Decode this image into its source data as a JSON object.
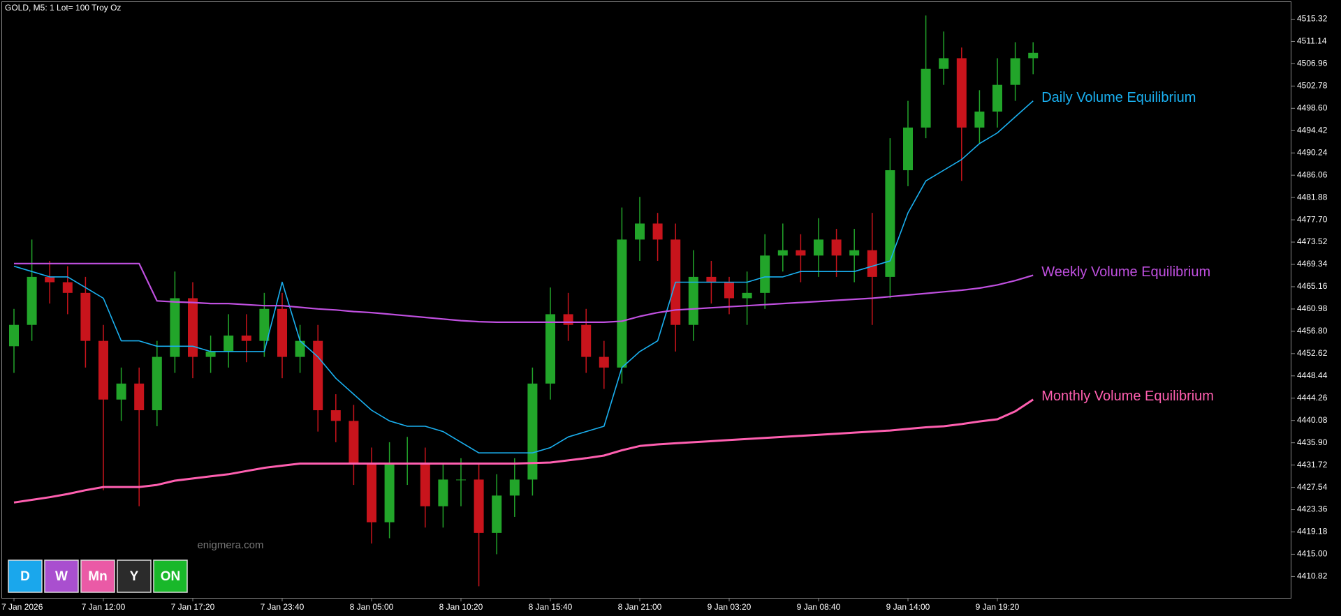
{
  "chart_data": {
    "type": "candlestick",
    "title": "GOLD, M5:  1 Lot= 100 Troy Oz",
    "annotations": [
      "enigmera.com"
    ],
    "buttons": [
      {
        "label": "D",
        "color": "#1aa7ec"
      },
      {
        "label": "W",
        "color": "#a94fcf"
      },
      {
        "label": "Mn",
        "color": "#ea5aa6"
      },
      {
        "label": "Y",
        "color": "#2b2b2b"
      },
      {
        "label": "ON",
        "color": "#19b82a"
      }
    ],
    "categories": [
      "7 Jan 2026",
      null,
      null,
      null,
      null,
      "7 Jan 12:00",
      null,
      null,
      null,
      null,
      "7 Jan 17:20",
      null,
      null,
      null,
      null,
      "7 Jan 23:40",
      null,
      null,
      null,
      null,
      "8 Jan 05:00",
      null,
      null,
      null,
      null,
      "8 Jan 10:20",
      null,
      null,
      null,
      null,
      "8 Jan 15:40",
      null,
      null,
      null,
      null,
      "8 Jan 21:00",
      null,
      null,
      null,
      null,
      "9 Jan 03:20",
      null,
      null,
      null,
      null,
      "9 Jan 08:40",
      null,
      null,
      null,
      null,
      "9 Jan 14:00",
      null,
      null,
      null,
      null,
      "9 Jan 19:20",
      null,
      null
    ],
    "candle_colors": {
      "up": "#22a52a",
      "down": "#c8141c"
    },
    "open": [
      4454,
      4458,
      4467,
      4466,
      4464,
      4455,
      4444,
      4447,
      4442,
      4452,
      4463,
      4452,
      4453,
      4456,
      4455,
      4461,
      4452,
      4455,
      4442,
      4440,
      4432,
      4421,
      4432,
      4432,
      4424,
      4429,
      4429,
      4419,
      4426,
      4429,
      4447,
      4460,
      4458,
      4452,
      4450,
      4474,
      4477,
      4474,
      4458,
      4467,
      4466,
      4463,
      4464,
      4471,
      4472,
      4471,
      4474,
      4471,
      4472,
      4467,
      4487,
      4495,
      4506,
      4508,
      4495,
      4498,
      4503,
      4508
    ],
    "high": [
      4461,
      4474,
      4470,
      4469,
      4467,
      4458,
      4450,
      4450,
      4455,
      4468,
      4466,
      4456,
      4460,
      4460,
      4464,
      4464,
      4458,
      4458,
      4445,
      4443,
      4435,
      4436,
      4437,
      4435,
      4432,
      4433,
      4432,
      4430,
      4433,
      4450,
      4465,
      4464,
      4461,
      4455,
      4480,
      4482,
      4479,
      4477,
      4472,
      4470,
      4467,
      4468,
      4475,
      4477,
      4475,
      4478,
      4476,
      4476,
      4479,
      4493,
      4500,
      4516,
      4513,
      4510,
      4502,
      4508,
      4511,
      4511
    ],
    "low": [
      4449,
      4455,
      4462,
      4460,
      4450,
      4427,
      4440,
      4424,
      4439,
      4449,
      4448,
      4449,
      4450,
      4451,
      4452,
      4448,
      4449,
      4438,
      4436,
      4428,
      4417,
      4418,
      4428,
      4420,
      4420,
      4424,
      4409,
      4415,
      4422,
      4426,
      4444,
      4455,
      4449,
      4446,
      4447,
      4470,
      4470,
      4453,
      4455,
      4462,
      4460,
      4458,
      4461,
      4468,
      4466,
      4467,
      4467,
      4466,
      4458,
      4463,
      4484,
      4493,
      4503,
      4485,
      4492,
      4495,
      4500,
      4505
    ],
    "close": [
      4458,
      4467,
      4466,
      4464,
      4455,
      4444,
      4447,
      4442,
      4452,
      4463,
      4452,
      4453,
      4456,
      4455,
      4461,
      4452,
      4455,
      4442,
      4440,
      4432,
      4421,
      4432,
      4432,
      4424,
      4429,
      4429,
      4419,
      4426,
      4429,
      4447,
      4460,
      4458,
      4452,
      4450,
      4474,
      4477,
      4474,
      4458,
      4467,
      4466,
      4463,
      4464,
      4471,
      4472,
      4471,
      4474,
      4471,
      4472,
      4467,
      4487,
      4495,
      4506,
      4508,
      4495,
      4498,
      4503,
      4508,
      4509
    ],
    "series": [
      {
        "name": "Daily Volume Equilibrium",
        "color": "#1ab0f0",
        "values": [
          4469,
          4468,
          4467,
          4467,
          4465,
          4463,
          4455,
          4455,
          4454,
          4454,
          4454,
          4453,
          4453,
          4453,
          4453,
          4466,
          4455,
          4452,
          4448,
          4445,
          4442,
          4440,
          4439,
          4439,
          4438,
          4436,
          4434,
          4434,
          4434,
          4434,
          4435,
          4437,
          4438,
          4439,
          4450,
          4453,
          4455,
          4466,
          4466,
          4466,
          4466,
          4466,
          4467,
          4467,
          4468,
          4468,
          4468,
          4468,
          4469,
          4470,
          4479,
          4485,
          4487,
          4489,
          4492,
          4494,
          4497,
          4500
        ]
      },
      {
        "name": "Weekly Volume Equilibrium",
        "color": "#c050e0",
        "values": [
          4469.5,
          4469.5,
          4469.5,
          4469.5,
          4469.5,
          4469.5,
          4469.5,
          4469.5,
          4462.5,
          4462.3,
          4462.2,
          4462,
          4462,
          4461.8,
          4461.6,
          4461.6,
          4461.3,
          4461,
          4460.8,
          4460.5,
          4460.3,
          4460,
          4459.7,
          4459.4,
          4459.1,
          4458.8,
          4458.6,
          4458.5,
          4458.5,
          4458.5,
          4458.5,
          4458.5,
          4458.5,
          4458.5,
          4458.7,
          4459.6,
          4460.3,
          4460.8,
          4461,
          4461.2,
          4461.4,
          4461.6,
          4461.8,
          4462,
          4462.2,
          4462.4,
          4462.6,
          4462.8,
          4463,
          4463.3,
          4463.6,
          4463.9,
          4464.2,
          4464.5,
          4464.9,
          4465.5,
          4466.3,
          4467.3
        ]
      },
      {
        "name": "Monthly Volume Equilibrium",
        "color": "#ff5fb0",
        "values": [
          4424.7,
          4425.2,
          4425.7,
          4426.3,
          4427,
          4427.6,
          4427.6,
          4427.6,
          4428,
          4428.8,
          4429.2,
          4429.6,
          4430,
          4430.6,
          4431.2,
          4431.6,
          4432,
          4432,
          4432,
          4432,
          4432,
          4432,
          4432,
          4432,
          4432,
          4432,
          4432,
          4432,
          4432,
          4432.1,
          4432.2,
          4432.6,
          4433,
          4433.5,
          4434.5,
          4435.3,
          4435.6,
          4435.8,
          4436,
          4436.2,
          4436.4,
          4436.6,
          4436.8,
          4437,
          4437.2,
          4437.4,
          4437.6,
          4437.8,
          4438,
          4438.2,
          4438.5,
          4438.8,
          4439,
          4439.4,
          4439.9,
          4440.3,
          4441.8,
          4444
        ]
      }
    ],
    "ylim": [
      4406.82,
      4518.52
    ],
    "yticks": [
      4515.32,
      4511.14,
      4506.96,
      4502.78,
      {
        "value": 4498.6,
        "label": "4498.60"
      },
      4494.42,
      4490.24,
      4486.06,
      4481.88,
      {
        "value": 4477.7,
        "label": "4477.70"
      },
      4473.52,
      4469.34,
      4465.16,
      4460.98,
      {
        "value": 4456.8,
        "label": "4456.80"
      },
      4452.62,
      4448.44,
      4444.26,
      4440.08,
      {
        "value": 4435.9,
        "label": "4435.90"
      },
      4431.72,
      4427.54,
      4423.36,
      4419.18,
      {
        "value": 4415,
        "label": "4415.00"
      },
      4410.82
    ]
  }
}
